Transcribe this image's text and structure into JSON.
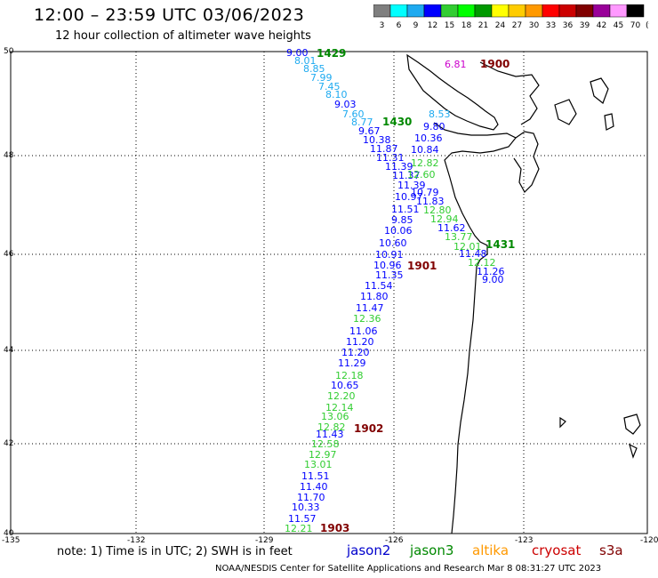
{
  "header": {
    "title": "12:00 – 23:59 UTC 03/06/2023",
    "subtitle": "12 hour collection of altimeter wave heights"
  },
  "colorbar": {
    "labels": [
      "3",
      "6",
      "9",
      "12",
      "15",
      "18",
      "21",
      "24",
      "27",
      "30",
      "33",
      "36",
      "39",
      "42",
      "45",
      "70"
    ],
    "unit": "(ft)",
    "colors": [
      "#7f7f7f",
      "#00ffff",
      "#1eaaf0",
      "#0000ff",
      "#32cd32",
      "#00ff00",
      "#009900",
      "#ffff00",
      "#ffcc00",
      "#ff9900",
      "#ff0000",
      "#cc0000",
      "#800000",
      "#990099",
      "#ff99ff",
      "#000000"
    ]
  },
  "axes": {
    "lat_labels": [
      "50",
      "48",
      "46",
      "44",
      "42",
      "40"
    ],
    "lon_labels": [
      "-135",
      "-132",
      "-129",
      "-126",
      "-123",
      "-120"
    ]
  },
  "tracks": {
    "t1": {
      "time": "1429",
      "values": [
        "9.00",
        "8.01",
        "8.85",
        "7.99",
        "7.45",
        "8.10",
        "9.03",
        "7.60",
        "8.77",
        "9.67",
        "10.38",
        "11.87",
        "11.31",
        "11.39",
        "11.37",
        "11.39",
        "10.97",
        "11.51",
        "9.85",
        "10.06",
        "10.60",
        "10.91",
        "10.96",
        "11.35",
        "11.54",
        "11.80",
        "11.47",
        "12.36",
        "11.06",
        "11.20",
        "11.20",
        "11.29",
        "12.18",
        "10.65",
        "12.20",
        "12.14",
        "13.06",
        "12.82",
        "11.43",
        "12.58",
        "12.97",
        "13.01",
        "11.51",
        "11.40",
        "11.70",
        "10.33",
        "11.57",
        "12.21"
      ]
    },
    "t2": {
      "time": "1430",
      "values": [
        "8.53",
        "9.80",
        "10.36",
        "10.84",
        "12.82",
        "12.60",
        "10.79",
        "11.83",
        "12.80",
        "12.94",
        "11.62",
        "13.77",
        "12.01",
        "11.48",
        "12.12",
        "11.26",
        "9.00"
      ]
    },
    "t3": {
      "time": "1431"
    },
    "markers": [
      "1900",
      "1901",
      "1902",
      "1903"
    ],
    "north_value": "6.81"
  },
  "footer": {
    "note": "note: 1) Time is in UTC; 2) SWH is in feet",
    "legend": [
      "jason2",
      "jason3",
      "altika",
      "cryosat",
      "s3a"
    ],
    "credit": "NOAA/NESDIS Center for Satellite Applications and Research    Mar  8 08:31:27 UTC 2023"
  }
}
